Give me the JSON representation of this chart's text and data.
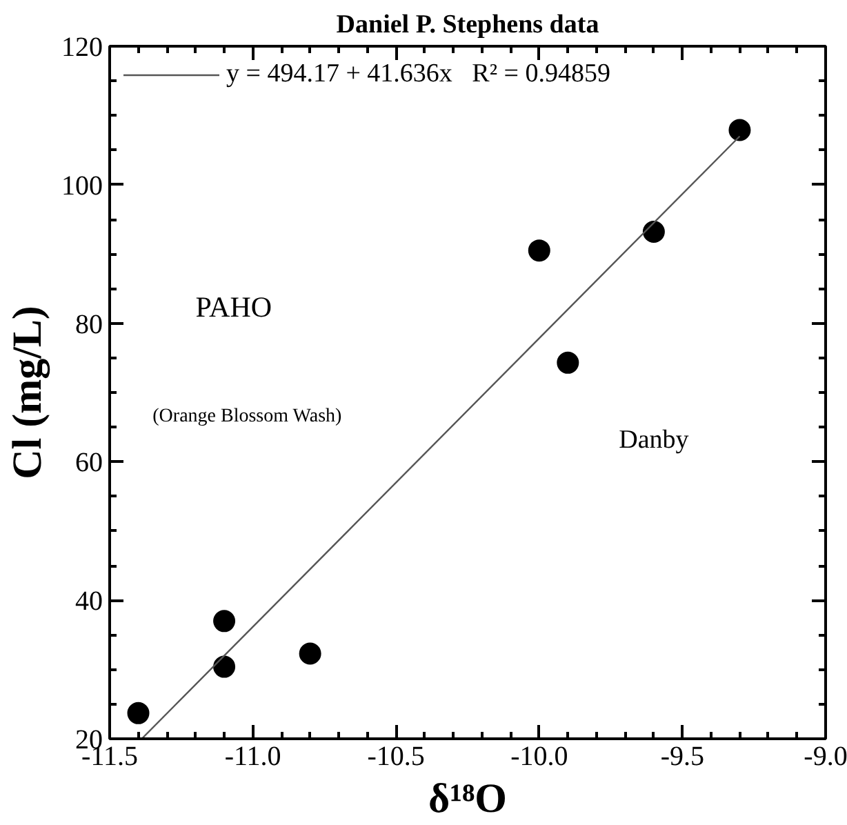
{
  "chart_data": {
    "type": "scatter",
    "title": "Daniel P. Stephens data",
    "xlabel": "δ¹⁸O",
    "ylabel": "Cl (mg/L)",
    "x": [
      -11.4,
      -11.1,
      -11.1,
      -10.8,
      -10.0,
      -9.9,
      -9.6,
      -9.3
    ],
    "series": [
      {
        "color": "#000000",
        "marker": "circle",
        "values": [
          23.7,
          37.0,
          30.4,
          32.3,
          90.5,
          74.3,
          93.2,
          107.9
        ]
      },
      {
        "type": "line",
        "name": "y = 494.17 + 41.636x   R² = 0.94859",
        "color": "#555555",
        "x": [
          -11.388,
          -9.3
        ],
        "values": [
          20,
          107
        ],
        "line_style": "solid"
      }
    ],
    "annotations": [
      "PAHO",
      "(Orange Blossom Wash)",
      "Danby"
    ],
    "xlim": [
      -11.5,
      -9.0
    ],
    "ylim": [
      20,
      120
    ],
    "xticks": [
      {
        "value": -11.5,
        "label": "-11.5"
      },
      {
        "value": -11.0,
        "label": "-11.0"
      },
      {
        "value": -10.5,
        "label": "-10.5"
      },
      {
        "value": -10.0,
        "label": "-10.0"
      },
      {
        "value": -9.5,
        "label": "-9.5"
      },
      {
        "value": -9.0,
        "label": "-9.0"
      }
    ],
    "yticks": [
      20,
      40,
      60,
      80,
      100,
      120
    ],
    "grid": false,
    "legend": "top left"
  }
}
